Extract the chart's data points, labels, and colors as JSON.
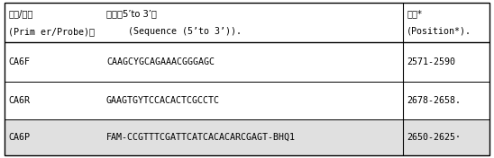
{
  "figsize": [
    5.48,
    1.76
  ],
  "dpi": 100,
  "bg_color": "#ffffff",
  "border_color": "#000000",
  "header_row1": [
    "引物/探针",
    "序列（5’to 3’）",
    "位置*"
  ],
  "header_row2": [
    "(Prim er/Probe)。",
    "    (Sequence (5’to 3’)).",
    "(Position*)."
  ],
  "data_rows": [
    [
      "CA6F",
      "CAAGCYGCAGAAACGGGAGC",
      "2571-2590"
    ],
    [
      "CA6R",
      "GAAGTGYTCCACACTCGCCTC",
      "2678-2658."
    ],
    [
      "CA6P",
      "FAM-CCGTTTCGATTCATCACACARCGAGT-BHQ1",
      "2650-2625·"
    ]
  ],
  "shaded_row_color": "#e0e0e0",
  "font_size": 7.2,
  "header_font_size": 7.2
}
